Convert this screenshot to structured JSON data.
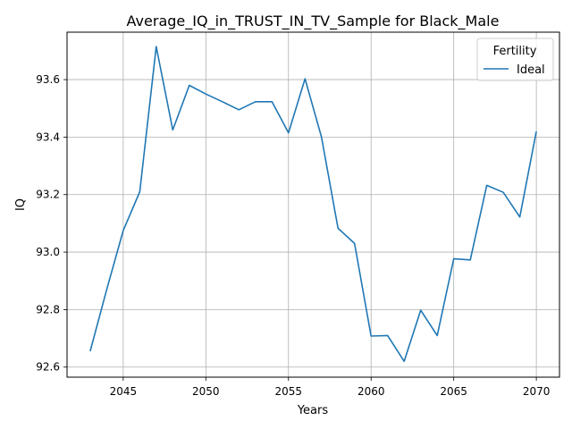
{
  "chart_data": {
    "type": "line",
    "title": "Average_IQ_in_TRUST_IN_TV_Sample for Black_Male",
    "xlabel": "Years",
    "ylabel": "IQ",
    "xlim": [
      2041.6,
      2071.4
    ],
    "ylim": [
      92.565,
      93.765
    ],
    "xticks": [
      2045,
      2050,
      2055,
      2060,
      2065,
      2070
    ],
    "yticks": [
      92.6,
      92.8,
      93.0,
      93.2,
      93.4,
      93.6
    ],
    "ytick_labels": [
      "92.6",
      "92.8",
      "93.0",
      "93.2",
      "93.4",
      "93.6"
    ],
    "grid": true,
    "legend": {
      "title": "Fertility",
      "placement": "top-right"
    },
    "series": [
      {
        "name": "Ideal",
        "color": "#1f77b4",
        "x": [
          2043,
          2044,
          2045,
          2046,
          2047,
          2048,
          2049,
          2050,
          2051,
          2052,
          2053,
          2054,
          2055,
          2056,
          2057,
          2058,
          2059,
          2060,
          2061,
          2062,
          2063,
          2064,
          2065,
          2066,
          2067,
          2068,
          2069,
          2070
        ],
        "y": [
          92.655,
          92.87,
          93.075,
          93.21,
          93.715,
          93.425,
          93.58,
          93.55,
          93.523,
          93.495,
          93.523,
          93.523,
          93.415,
          93.603,
          93.4,
          93.083,
          93.03,
          92.708,
          92.71,
          92.62,
          92.798,
          92.71,
          92.977,
          92.973,
          93.232,
          93.208,
          93.122,
          93.42
        ]
      }
    ]
  }
}
